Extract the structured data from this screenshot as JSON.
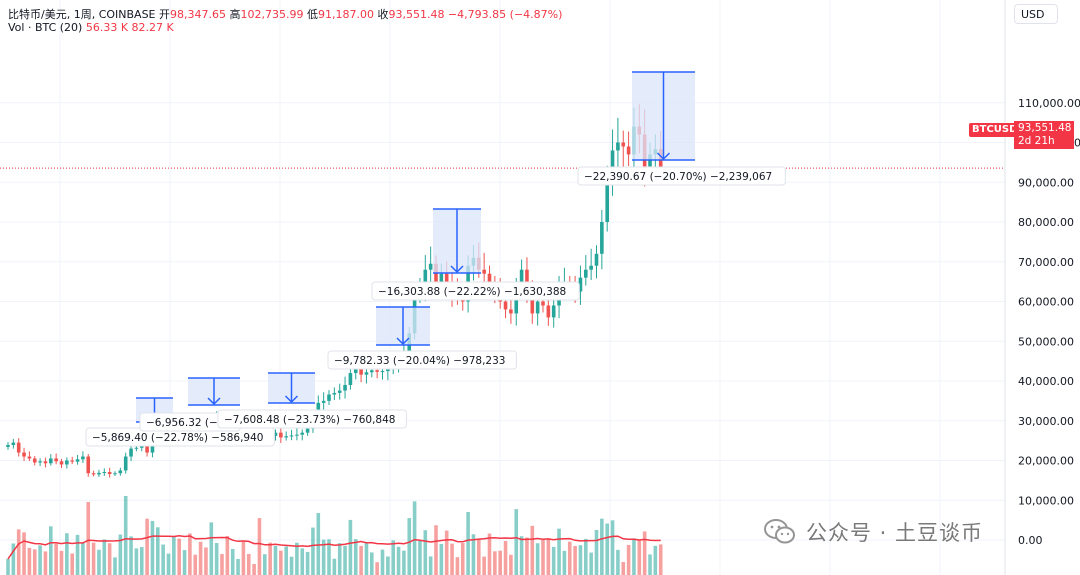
{
  "legend": {
    "symbol": "比特币/美元, 1周, COINBASE",
    "open_label": "开",
    "open": "98,347.65",
    "high_label": "高",
    "high": "102,735.99",
    "low_label": "低",
    "low": "91,187.00",
    "close_label": "收",
    "close": "93,551.48",
    "change": "−4,793.85 (−4.87%)",
    "vol_label": "Vol · BTC (20)",
    "vol_value": "56.33 K",
    "vol_ma": "82.27 K"
  },
  "toolbar": {
    "currency": "USD"
  },
  "price_tag": {
    "symbol": "BTCUSD",
    "price": "93,551.48",
    "countdown": "2d 21h"
  },
  "watermark": {
    "text": "公众号 · 土豆谈币"
  },
  "colors": {
    "up": "#26a69a",
    "down": "#ef5350",
    "measure_fill": "#dbe6fb",
    "measure_stroke": "#2962ff",
    "ma_line": "#f23645"
  },
  "chart_data": {
    "type": "candlestick",
    "title": "比特币/美元, 1周, COINBASE",
    "y_axis": {
      "ticks": [
        "110,000.00",
        "100,000.00",
        "90,000.00",
        "80,000.00",
        "70,000.00",
        "60,000.00",
        "50,000.00",
        "40,000.00",
        "30,000.00",
        "20,000.00",
        "10,000.00",
        "0.00"
      ],
      "range": [
        0,
        115000
      ]
    },
    "last_price": 93551.48,
    "closes": [
      23900,
      24500,
      22000,
      21000,
      20500,
      19500,
      19800,
      19300,
      20500,
      19800,
      19000,
      20000,
      19700,
      20300,
      21000,
      16800,
      16500,
      16900,
      17100,
      16600,
      16800,
      17500,
      21000,
      23000,
      23200,
      24200,
      22000,
      24500,
      27500,
      28000,
      28500,
      29300,
      27800,
      29000,
      27500,
      27200,
      27000,
      26500,
      30000,
      30500,
      30200,
      29500,
      29800,
      30000,
      29500,
      29300,
      29200,
      26000,
      26500,
      26200,
      27000,
      25800,
      26100,
      26300,
      26500,
      27000,
      28000,
      30000,
      34500,
      35000,
      36600,
      37000,
      37600,
      39000,
      42000,
      43800,
      41600,
      42200,
      42700,
      42300,
      42500,
      43000,
      43800,
      45000,
      47000,
      52000,
      62000,
      63000,
      68000,
      69500,
      64000,
      67000,
      64000,
      62000,
      61000,
      60000,
      69000,
      71000,
      68000,
      67000,
      64000,
      63000,
      60000,
      58000,
      57000,
      64000,
      68000,
      62000,
      57000,
      60000,
      59000,
      56000,
      59000,
      63000,
      64500,
      64000,
      62500,
      66000,
      68000,
      69000,
      72000,
      80000,
      90000,
      98000,
      100000,
      99000,
      97000,
      104000,
      102000,
      94000,
      97000,
      98347,
      93551
    ],
    "volume_ma_label": "Vol · BTC (20)",
    "measurements": [
      {
        "label": "−5,869.40 (−22.78%) −586,940"
      },
      {
        "label": "−6,956.32 (−22"
      },
      {
        "label": "−7,608.48 (−23.73%) −760,848"
      },
      {
        "label": "−9,782.33 (−20.04%) −978,233"
      },
      {
        "label": "−16,303.88 (−22.22%) −1,630,388"
      },
      {
        "label": "−22,390.67 (−20.70%) −2,239,067"
      }
    ]
  }
}
